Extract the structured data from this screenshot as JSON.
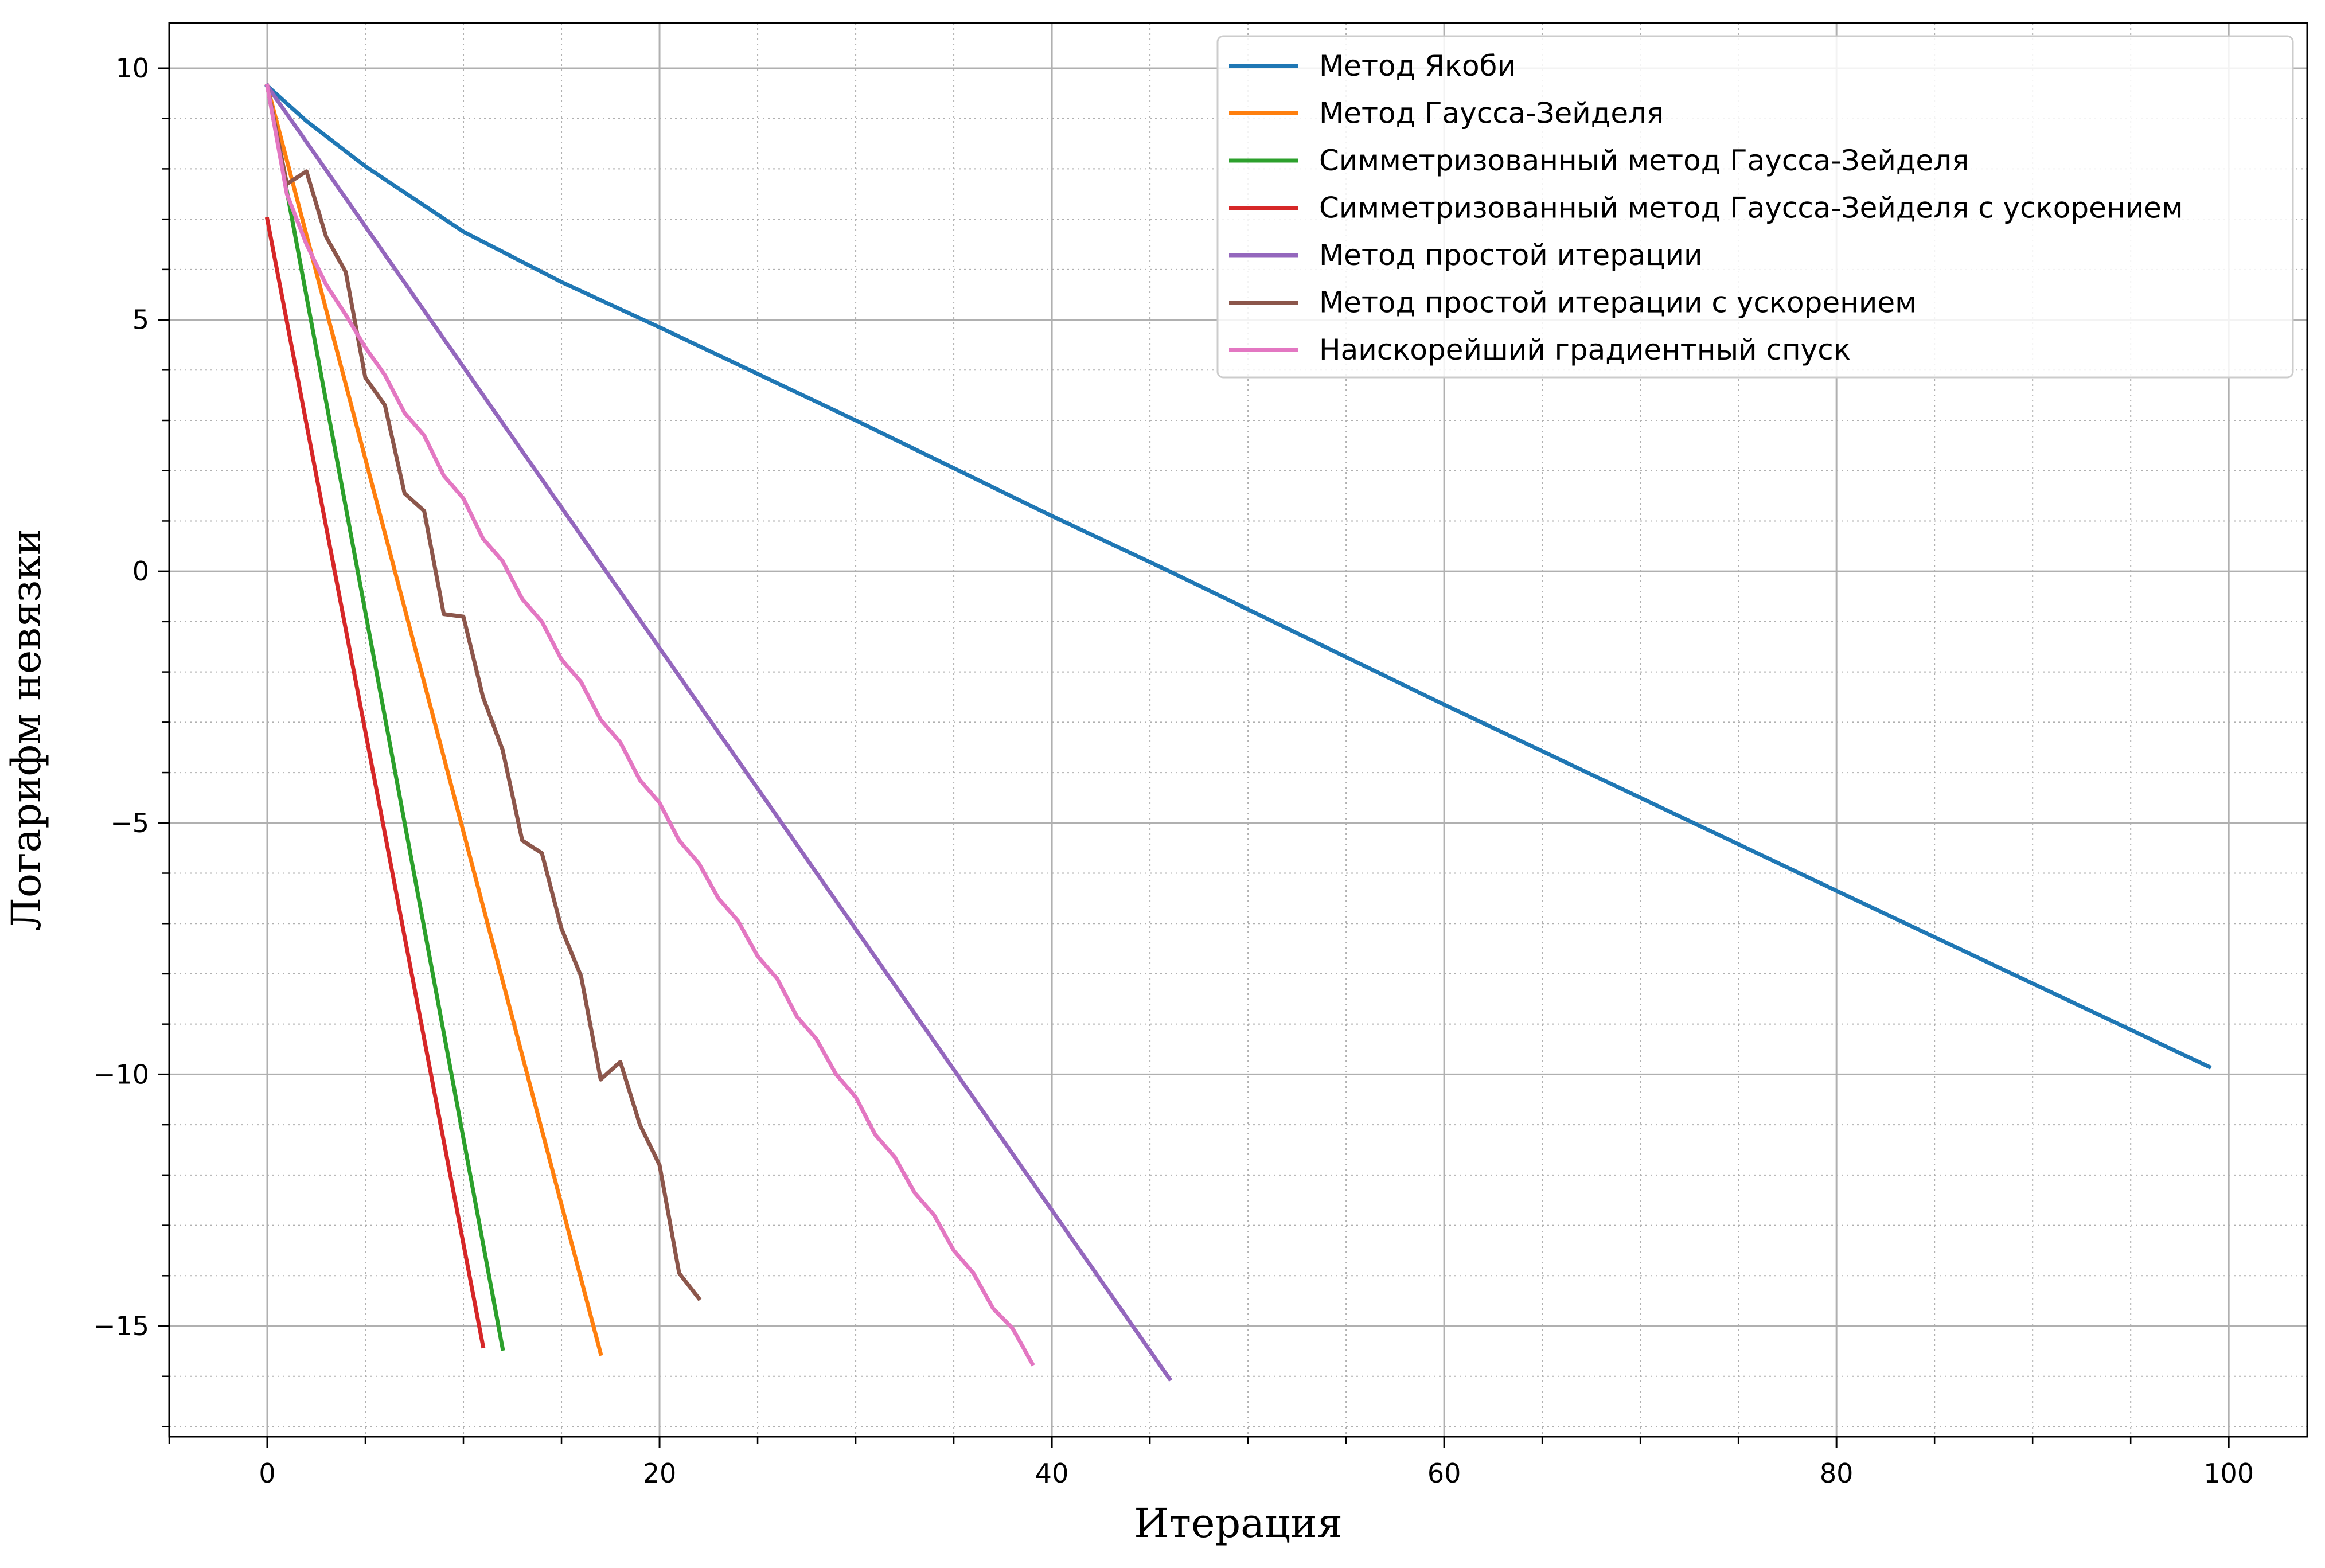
{
  "chart_data": {
    "type": "line",
    "title": "",
    "xlabel": "Итерация",
    "ylabel": "Логарифм невязки",
    "xlim": [
      -5,
      104
    ],
    "ylim": [
      -17.2,
      10.9
    ],
    "x_ticks": [
      0,
      20,
      40,
      60,
      80,
      100
    ],
    "x_tick_labels": [
      "0",
      "20",
      "40",
      "60",
      "80",
      "100"
    ],
    "y_ticks": [
      10,
      5,
      0,
      -5,
      -10,
      -15
    ],
    "y_tick_labels": [
      "10",
      "5",
      "0",
      "−5",
      "−10",
      "−15"
    ],
    "x_minor_step": 5,
    "y_minor_step": 1,
    "grid": {
      "major": true,
      "minor": true
    },
    "legend_position": "top-right",
    "series": [
      {
        "name": "Метод Якоби",
        "color": "#1f77b4",
        "points": [
          [
            0,
            9.65
          ],
          [
            2,
            8.95
          ],
          [
            5,
            8.05
          ],
          [
            10,
            6.75
          ],
          [
            15,
            5.75
          ],
          [
            20,
            4.85
          ],
          [
            30,
            3.0
          ],
          [
            40,
            1.1
          ],
          [
            46,
            0.0
          ],
          [
            60,
            -2.65
          ],
          [
            80,
            -6.35
          ],
          [
            99,
            -9.85
          ]
        ]
      },
      {
        "name": "Метод Гаусса-Зейделя",
        "color": "#ff7f0e",
        "points": [
          [
            0,
            9.65
          ],
          [
            17,
            -15.55
          ]
        ]
      },
      {
        "name": "Симметризованный метод Гаусса-Зейделя",
        "color": "#2ca02c",
        "points": [
          [
            0,
            9.65
          ],
          [
            12,
            -15.45
          ]
        ]
      },
      {
        "name": "Симметризованный метод Гаусса-Зейделя с ускорением",
        "color": "#d62728",
        "points": [
          [
            0,
            7.0
          ],
          [
            11,
            -15.4
          ]
        ]
      },
      {
        "name": "Метод простой итерации",
        "color": "#9467bd",
        "points": [
          [
            0,
            9.65
          ],
          [
            46,
            -16.05
          ]
        ]
      },
      {
        "name": "Метод простой итерации с ускорением",
        "color": "#8c564b",
        "points": [
          [
            0,
            9.65
          ],
          [
            1,
            7.7
          ],
          [
            2,
            7.95
          ],
          [
            3,
            6.65
          ],
          [
            4,
            5.95
          ],
          [
            5,
            3.85
          ],
          [
            6,
            3.3
          ],
          [
            7,
            1.55
          ],
          [
            8,
            1.2
          ],
          [
            9,
            -0.85
          ],
          [
            10,
            -0.9
          ],
          [
            11,
            -2.5
          ],
          [
            12,
            -3.55
          ],
          [
            13,
            -5.35
          ],
          [
            14,
            -5.6
          ],
          [
            15,
            -7.1
          ],
          [
            16,
            -8.05
          ],
          [
            17,
            -10.1
          ],
          [
            18,
            -9.75
          ],
          [
            19,
            -11.0
          ],
          [
            20,
            -11.8
          ],
          [
            21,
            -13.95
          ],
          [
            22,
            -14.45
          ]
        ]
      },
      {
        "name": "Наискорейший градиентный спуск",
        "color": "#e377c2",
        "points": [
          [
            0,
            9.65
          ],
          [
            1,
            7.5
          ],
          [
            2,
            6.5
          ],
          [
            3,
            5.7
          ],
          [
            4,
            5.1
          ],
          [
            5,
            4.45
          ],
          [
            6,
            3.9
          ],
          [
            7,
            3.15
          ],
          [
            8,
            2.7
          ],
          [
            9,
            1.9
          ],
          [
            10,
            1.45
          ],
          [
            11,
            0.65
          ],
          [
            12,
            0.2
          ],
          [
            13,
            -0.55
          ],
          [
            14,
            -1.0
          ],
          [
            15,
            -1.75
          ],
          [
            16,
            -2.2
          ],
          [
            17,
            -2.95
          ],
          [
            18,
            -3.4
          ],
          [
            19,
            -4.15
          ],
          [
            20,
            -4.6
          ],
          [
            21,
            -5.35
          ],
          [
            22,
            -5.8
          ],
          [
            23,
            -6.5
          ],
          [
            24,
            -6.95
          ],
          [
            25,
            -7.65
          ],
          [
            26,
            -8.1
          ],
          [
            27,
            -8.85
          ],
          [
            28,
            -9.3
          ],
          [
            29,
            -10.0
          ],
          [
            30,
            -10.45
          ],
          [
            31,
            -11.2
          ],
          [
            32,
            -11.65
          ],
          [
            33,
            -12.35
          ],
          [
            34,
            -12.8
          ],
          [
            35,
            -13.5
          ],
          [
            36,
            -13.95
          ],
          [
            37,
            -14.65
          ],
          [
            38,
            -15.05
          ],
          [
            39,
            -15.75
          ]
        ]
      }
    ]
  }
}
